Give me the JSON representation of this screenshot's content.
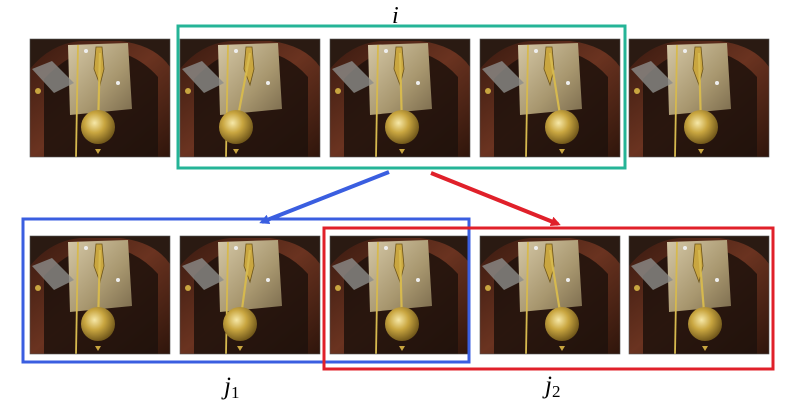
{
  "labels": {
    "center": "i",
    "left_main": "j",
    "left_sub": "1",
    "right_main": "j",
    "right_sub": "2"
  },
  "colors": {
    "center_group": "#25b497",
    "left_group": "#3a5ee0",
    "right_group": "#e0202a",
    "frame_dark": "#2a1a12",
    "wood": "#5a2a18",
    "plate": "#b7a88a",
    "brass": "#c9a640"
  },
  "rows": {
    "top_frame_count": 5,
    "bottom_frame_count": 5
  }
}
